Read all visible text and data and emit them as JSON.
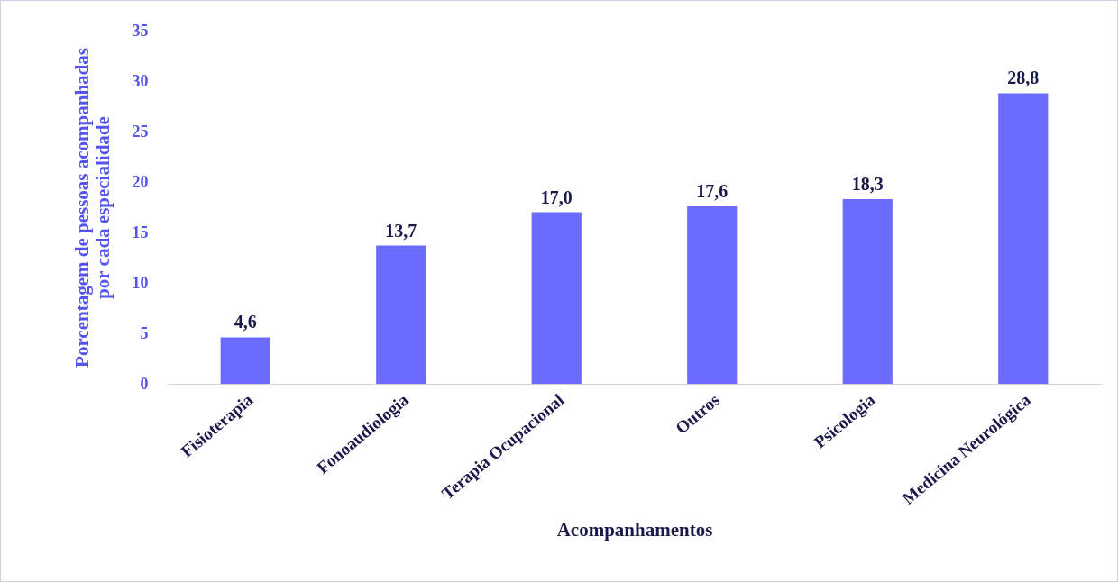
{
  "chart_data": {
    "type": "bar",
    "xlabel": "Acompanhamentos",
    "ylabel": "Porcentagem de pessoas acompanhadas\npor cada especialidade",
    "categories": [
      "Fisioterapia",
      "Fonoaudiologia",
      "Terapia Ocupacional",
      "Outros",
      "Psicologia",
      "Medicina Neurológica"
    ],
    "values": [
      4.6,
      13.7,
      17.0,
      17.6,
      18.3,
      28.8
    ],
    "color": "#6b6bff",
    "value_labels": [
      "4,6",
      "13,7",
      "17,0",
      "17,6",
      "18,3",
      "28,8"
    ],
    "ylim": [
      0,
      35
    ],
    "yticks": [
      0,
      5,
      10,
      15,
      20,
      25,
      30,
      35
    ]
  }
}
